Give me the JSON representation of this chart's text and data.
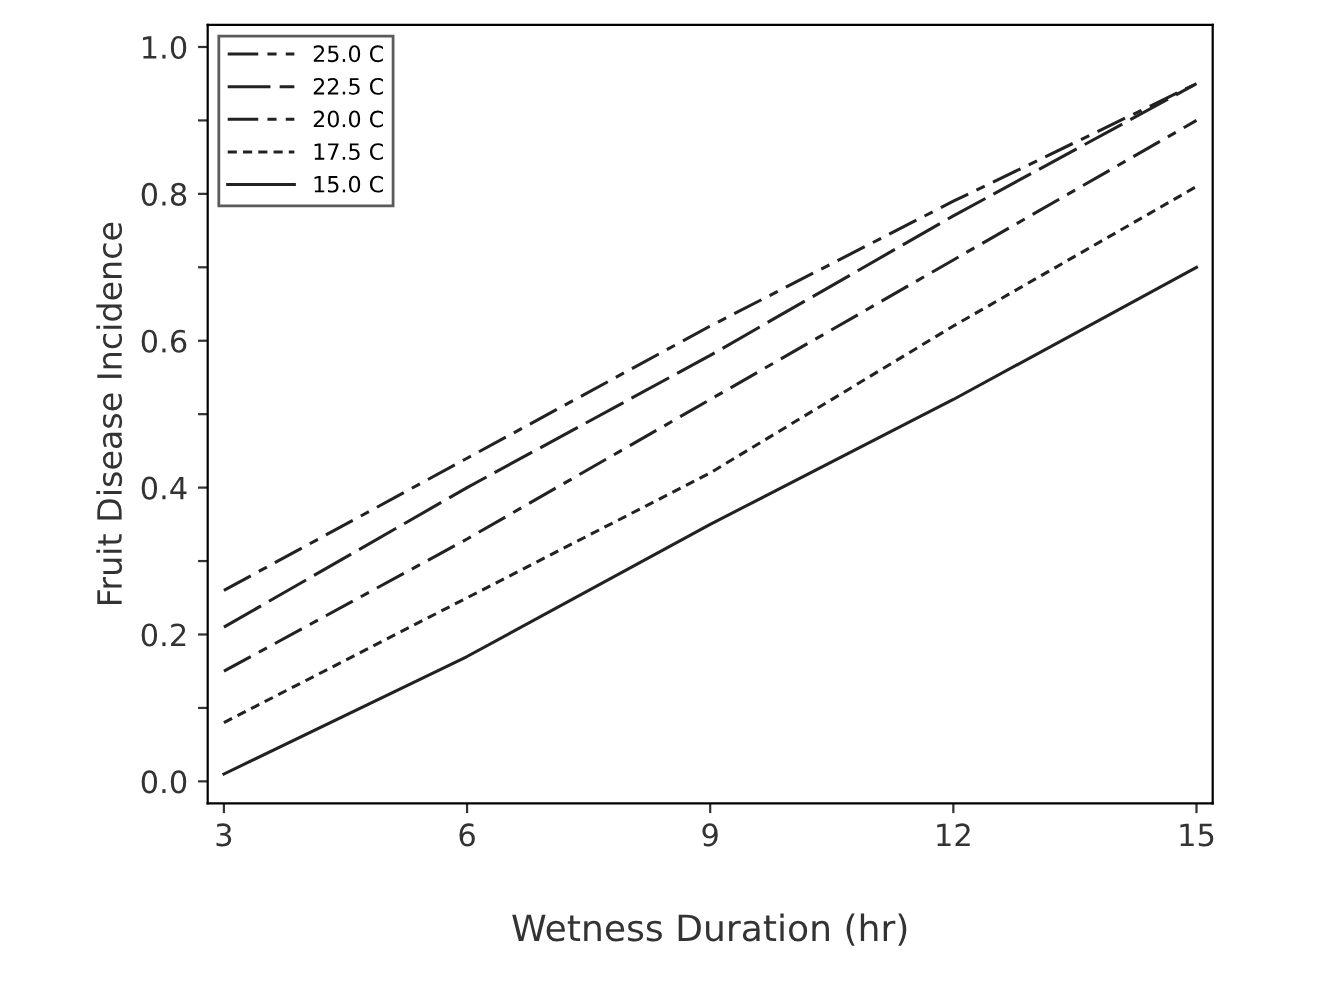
{
  "chart_data": {
    "type": "line",
    "xlabel": "Wetness Duration (hr)",
    "ylabel": "Fruit Disease Incidence",
    "x": [
      3,
      6,
      9,
      12,
      15
    ],
    "series": [
      {
        "name": "25.0 C",
        "color": "#222222",
        "line_style": "dashdot",
        "values": [
          0.26,
          0.44,
          0.62,
          0.79,
          0.95
        ]
      },
      {
        "name": "22.5 C",
        "color": "#222222",
        "line_style": "longdash",
        "values": [
          0.21,
          0.4,
          0.58,
          0.77,
          0.95
        ]
      },
      {
        "name": "20.0 C",
        "color": "#222222",
        "line_style": "dashdot",
        "values": [
          0.15,
          0.33,
          0.52,
          0.71,
          0.9
        ]
      },
      {
        "name": "17.5 C",
        "color": "#222222",
        "line_style": "dashed",
        "values": [
          0.08,
          0.25,
          0.42,
          0.62,
          0.81
        ]
      },
      {
        "name": "15.0 C",
        "color": "#222222",
        "line_style": "solid",
        "values": [
          0.01,
          0.17,
          0.35,
          0.52,
          0.7
        ]
      }
    ],
    "xlim": [
      2.8,
      15.2
    ],
    "ylim": [
      -0.03,
      1.03
    ],
    "xticks": [
      3,
      6,
      9,
      12,
      15
    ],
    "yticks": [
      {
        "value": 0,
        "label": "0.0"
      },
      {
        "value": 0.1,
        "label": null
      },
      {
        "value": 0.2,
        "label": "0.2"
      },
      {
        "value": 0.3,
        "label": null
      },
      {
        "value": 0.4,
        "label": "0.4"
      },
      {
        "value": 0.5,
        "label": null
      },
      {
        "value": 0.6,
        "label": "0.6"
      },
      {
        "value": 0.7,
        "label": null
      },
      {
        "value": 0.8,
        "label": "0.8"
      },
      {
        "value": 0.9,
        "label": null
      },
      {
        "value": 1.0,
        "label": "1.0"
      }
    ],
    "grid": false,
    "legend": "top left",
    "marker": "none"
  }
}
